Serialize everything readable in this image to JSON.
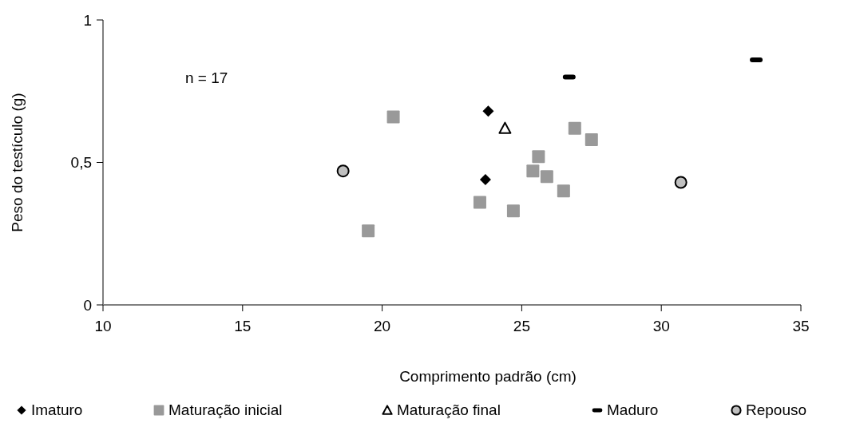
{
  "chart_data": {
    "type": "scatter",
    "xlabel": "Comprimento padrão (cm)",
    "ylabel": "Peso do testículo (g)",
    "annotations": [
      "n = 17"
    ],
    "xlim": [
      10,
      35
    ],
    "xticks": [
      10,
      15,
      20,
      25,
      30,
      35
    ],
    "ylim": [
      0,
      1
    ],
    "yticks": [
      0,
      {
        "value": 0.5,
        "label": "0,5"
      },
      1
    ],
    "legend": "bottom",
    "series": [
      {
        "name": "Imaturo",
        "color": "#000000",
        "marker": "diamond",
        "x": [
          23.8,
          23.7
        ],
        "values": [
          0.68,
          0.44
        ]
      },
      {
        "name": "Maturação inicial",
        "color": "#999999",
        "marker": "square",
        "x": [
          20.4,
          19.5,
          23.5,
          24.7,
          25.6,
          25.4,
          25.9,
          26.5,
          26.9,
          27.5
        ],
        "values": [
          0.66,
          0.26,
          0.36,
          0.33,
          0.52,
          0.47,
          0.45,
          0.4,
          0.62,
          0.58
        ]
      },
      {
        "name": "Maturação final",
        "color": "#000000",
        "marker": "triangle",
        "x": [
          24.4
        ],
        "values": [
          0.62
        ]
      },
      {
        "name": "Maduro",
        "color": "#000000",
        "x": [
          26.7,
          33.4
        ],
        "values": [
          0.8,
          0.86
        ]
      },
      {
        "name": "Repouso",
        "color": "#c0c0c0",
        "marker": "circle",
        "x": [
          18.6,
          30.7
        ],
        "values": [
          0.47,
          0.43
        ]
      }
    ]
  }
}
